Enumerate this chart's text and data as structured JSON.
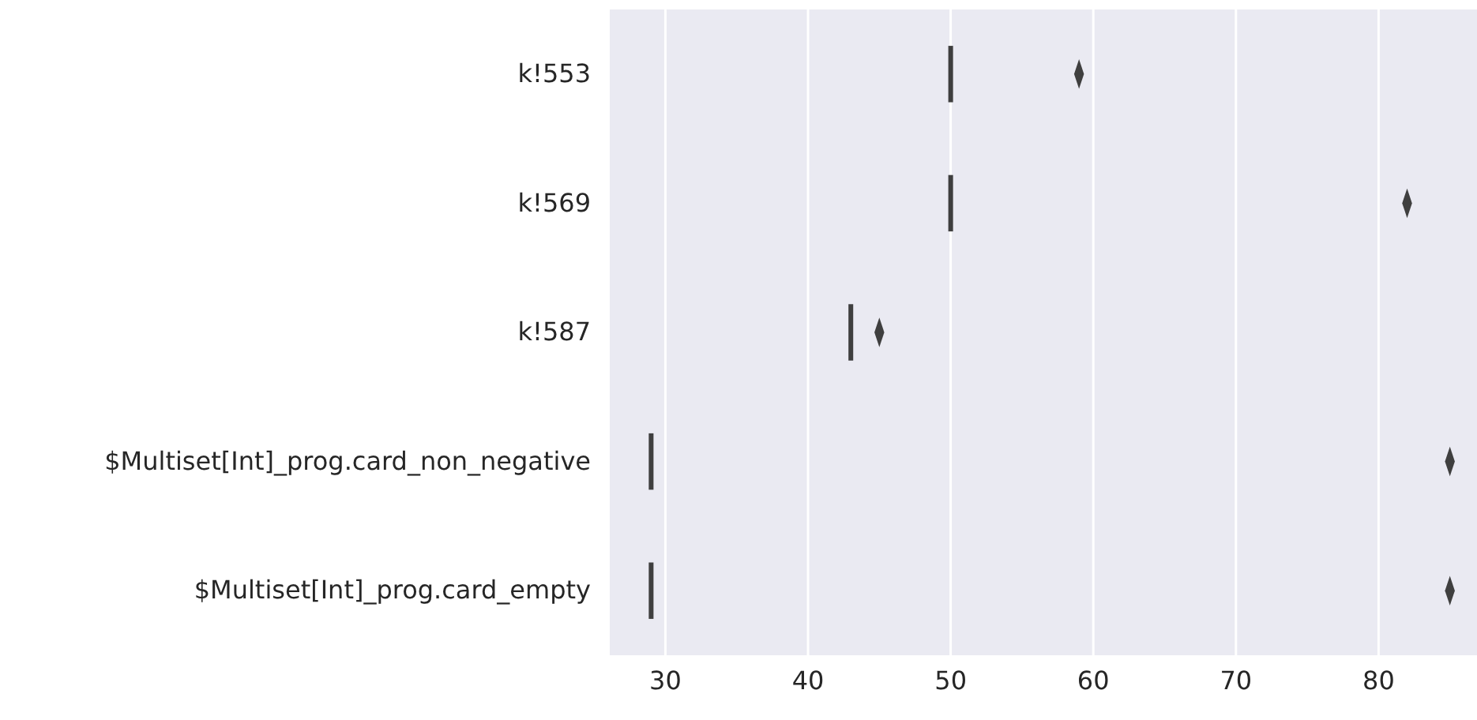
{
  "chart_data": {
    "type": "box",
    "orientation": "horizontal",
    "categories": [
      "k!553",
      "k!569",
      "k!587",
      "$Multiset[Int]_prog.card_non_negative",
      "$Multiset[Int]_prog.card_empty"
    ],
    "boxes": [
      {
        "low": 50,
        "q1": 50,
        "median": 50,
        "q3": 50,
        "high": 50,
        "outliers": [
          59
        ]
      },
      {
        "low": 50,
        "q1": 50,
        "median": 50,
        "q3": 50,
        "high": 50,
        "outliers": [
          82
        ]
      },
      {
        "low": 43,
        "q1": 43,
        "median": 43,
        "q3": 43,
        "high": 43,
        "outliers": [
          45
        ]
      },
      {
        "low": 29,
        "q1": 29,
        "median": 29,
        "q3": 29,
        "high": 29,
        "outliers": [
          85
        ]
      },
      {
        "low": 29,
        "q1": 29,
        "median": 29,
        "q3": 29,
        "high": 29,
        "outliers": [
          85
        ]
      }
    ],
    "color": "#3f3f3f",
    "xlim": [
      26.1,
      86.9
    ],
    "xticks": [
      30,
      40,
      50,
      60,
      70,
      80
    ],
    "grid": "x",
    "marker": "diamond"
  }
}
